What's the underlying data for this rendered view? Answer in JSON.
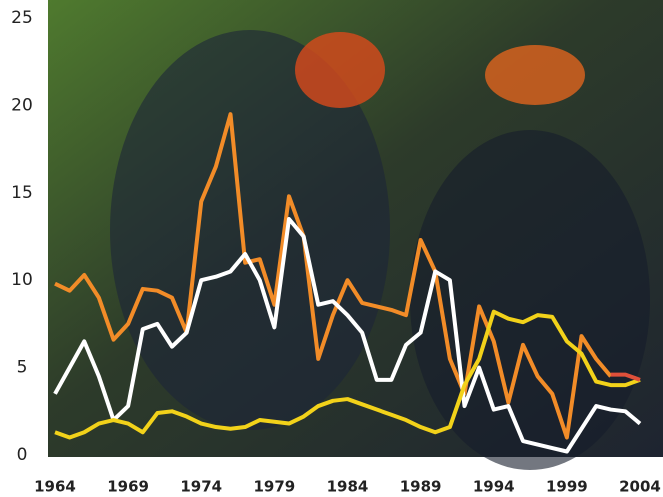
{
  "chart_data": {
    "type": "line",
    "x": [
      1964,
      1965,
      1966,
      1967,
      1968,
      1969,
      1970,
      1971,
      1972,
      1973,
      1974,
      1975,
      1976,
      1977,
      1978,
      1979,
      1980,
      1981,
      1982,
      1983,
      1984,
      1985,
      1986,
      1987,
      1988,
      1989,
      1990,
      1991,
      1992,
      1993,
      1994,
      1995,
      1996,
      1997,
      1998,
      1999,
      2000,
      2001,
      2002,
      2003,
      2004
    ],
    "series": [
      {
        "color": "#f28c28",
        "values": [
          9.8,
          9.4,
          10.3,
          9.0,
          6.6,
          7.5,
          9.5,
          9.4,
          9.0,
          7.0,
          14.5,
          16.5,
          19.5,
          11.0,
          11.2,
          8.6,
          14.8,
          12.5,
          5.5,
          8.0,
          10.0,
          8.7,
          8.5,
          8.3,
          8.0,
          12.3,
          10.5,
          5.5,
          3.5,
          8.5,
          6.5,
          3.0,
          6.3,
          4.5,
          3.5,
          1.0,
          6.8,
          5.5,
          4.5,
          null,
          null
        ]
      },
      {
        "color": "#ffffff",
        "values": [
          3.5,
          5.0,
          6.5,
          4.5,
          2.0,
          2.8,
          7.2,
          7.5,
          6.2,
          7.0,
          10.0,
          10.2,
          10.5,
          11.5,
          10.0,
          7.3,
          13.5,
          12.5,
          8.6,
          8.8,
          8.0,
          7.0,
          4.3,
          4.3,
          6.3,
          7.0,
          10.5,
          10.0,
          2.8,
          5.0,
          2.6,
          2.8,
          0.8,
          0.6,
          0.4,
          0.2,
          1.5,
          2.8,
          2.6,
          2.5,
          1.8
        ]
      },
      {
        "color": "#f2d21a",
        "values": [
          1.3,
          1.0,
          1.3,
          1.8,
          2.0,
          1.8,
          1.3,
          2.4,
          2.5,
          2.2,
          1.8,
          1.6,
          1.5,
          1.6,
          2.0,
          1.9,
          1.8,
          2.2,
          2.8,
          3.1,
          3.2,
          2.9,
          2.6,
          2.3,
          2.0,
          1.6,
          1.3,
          1.6,
          4.0,
          5.5,
          8.2,
          7.8,
          7.6,
          8.0,
          7.9,
          6.5,
          5.8,
          4.2,
          4.0,
          4.0,
          4.3
        ]
      },
      {
        "color": "#e0503a",
        "values": [
          null,
          null,
          null,
          null,
          null,
          null,
          null,
          null,
          null,
          null,
          null,
          null,
          null,
          null,
          null,
          null,
          null,
          null,
          null,
          null,
          null,
          null,
          null,
          null,
          null,
          null,
          null,
          null,
          null,
          null,
          null,
          null,
          null,
          null,
          null,
          null,
          null,
          null,
          4.6,
          4.6,
          4.3
        ]
      }
    ],
    "xlim": [
      1964,
      2004
    ],
    "xticks": [
      1964,
      1969,
      1974,
      1979,
      1984,
      1989,
      1994,
      1999,
      2004
    ],
    "ylim": [
      0,
      25
    ],
    "yticks": [
      0,
      5,
      10,
      15,
      20,
      25
    ]
  }
}
